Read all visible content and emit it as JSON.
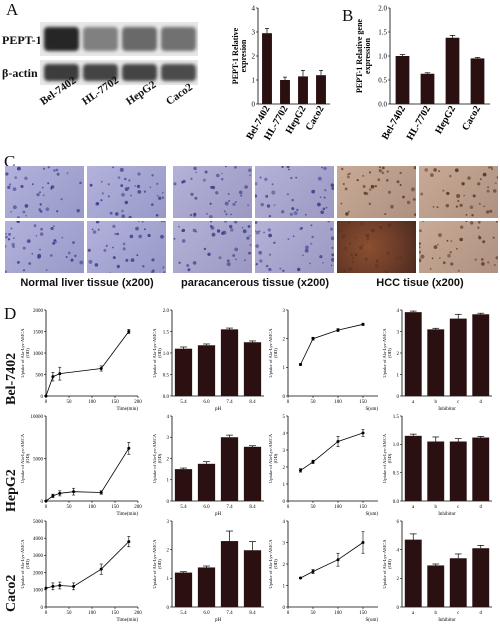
{
  "panels": {
    "A": "A",
    "B": "B",
    "C": "C",
    "D": "D"
  },
  "blot": {
    "rows": [
      "PEPT-1",
      "β-actin"
    ],
    "lanes": [
      "Bel-7402",
      "HL-7702",
      "HepG2",
      "Caco2"
    ],
    "pept1_intensity": [
      0.95,
      0.35,
      0.5,
      0.45
    ],
    "actin_intensity": [
      0.8,
      0.75,
      0.75,
      0.7
    ]
  },
  "tissues": {
    "labels": [
      "Normal liver tissue (x200)",
      "paracancerous tissue (x200)",
      "HCC tisue (x200)"
    ]
  },
  "rows": [
    "Bel-7402",
    "HepG2",
    "Caco2"
  ],
  "colors": {
    "bar": "#2a1010",
    "line": "#000000"
  },
  "chart_data": [
    {
      "id": "A-bar",
      "type": "bar",
      "categories": [
        "Bel-7402",
        "HL-7702",
        "HepG2",
        "Caco2"
      ],
      "values": [
        2.95,
        1.0,
        1.15,
        1.2
      ],
      "errors": [
        0.2,
        0.12,
        0.25,
        0.2
      ],
      "ylabel": "PEPT-1 Relative expresion",
      "ylim": [
        0,
        4
      ],
      "yticks": [
        0,
        1,
        2,
        3,
        4
      ]
    },
    {
      "id": "B-bar",
      "type": "bar",
      "categories": [
        "Bel-7402",
        "HL-7702",
        "HepG2",
        "Caco2"
      ],
      "values": [
        1.0,
        0.63,
        1.38,
        0.95
      ],
      "errors": [
        0.03,
        0.02,
        0.05,
        0.02
      ],
      "ylabel": "PEPT-1 Relative gene expression",
      "ylim": [
        0,
        2
      ],
      "yticks": [
        "0.0",
        "0.5",
        "1.0",
        "1.5",
        "2.0"
      ]
    },
    {
      "id": "D-r1-time",
      "type": "line",
      "x": [
        0,
        15,
        30,
        120,
        180
      ],
      "y": [
        0,
        450,
        520,
        640,
        1500
      ],
      "errors": [
        0,
        100,
        150,
        60,
        50
      ],
      "xlim": [
        0,
        200
      ],
      "ylim": [
        0,
        2000
      ],
      "xticks": [
        "0",
        "50",
        "100",
        "150",
        "200"
      ],
      "yticks": [
        "0",
        "500",
        "1000",
        "1500",
        "2000"
      ],
      "xlabel": "Time(min)",
      "ylabel": "Uptake of Ala-Lys-AMCA (OD)"
    },
    {
      "id": "D-r1-ph",
      "type": "bar",
      "categories": [
        "5.4",
        "6.0",
        "7.4",
        "8.4"
      ],
      "values": [
        1.1,
        1.18,
        1.55,
        1.25
      ],
      "errors": [
        0.04,
        0.03,
        0.03,
        0.03
      ],
      "ylim": [
        0,
        2
      ],
      "yticks": [
        "0.0",
        "0.5",
        "1.0",
        "1.5",
        "2.0"
      ],
      "xlabel": "pH",
      "ylabel": "Uptake of Ala-Lys-AMCA (OD)"
    },
    {
      "id": "D-r1-s",
      "type": "line",
      "x": [
        25,
        50,
        100,
        150
      ],
      "y": [
        1.1,
        2.0,
        2.3,
        2.5
      ],
      "errors": [
        0.03,
        0.05,
        0.05,
        0.04
      ],
      "xlim": [
        0,
        180
      ],
      "ylim": [
        0,
        3
      ],
      "xticks": [
        "0",
        "50",
        "100",
        "150"
      ],
      "yticks": [
        "0",
        "1",
        "2",
        "3"
      ],
      "xlabel": "S(um)",
      "ylabel": "Uptake of Ala-Lys-AMCA (OD)"
    },
    {
      "id": "D-r1-inh",
      "type": "bar",
      "categories": [
        "a",
        "b",
        "c",
        "d"
      ],
      "values": [
        3.9,
        3.1,
        3.6,
        3.8
      ],
      "errors": [
        0.05,
        0.05,
        0.2,
        0.05
      ],
      "ylim": [
        0,
        4
      ],
      "yticks": [
        "0",
        "1",
        "2",
        "3",
        "4"
      ],
      "xlabel": "Inhibitor",
      "ylabel": "Uptake of Ala-Lys-AMCA (OD)"
    },
    {
      "id": "D-r2-time",
      "type": "line",
      "x": [
        0,
        15,
        30,
        60,
        120,
        180
      ],
      "y": [
        0,
        600,
        900,
        1100,
        1000,
        6200
      ],
      "errors": [
        0,
        200,
        300,
        400,
        200,
        700
      ],
      "xlim": [
        0,
        200
      ],
      "ylim": [
        0,
        10000
      ],
      "xticks": [
        "0",
        "50",
        "100",
        "150",
        "200"
      ],
      "yticks": [
        "0",
        "5000",
        "10000"
      ],
      "xlabel": "Time(min)",
      "ylabel": "Uptake of Ala-Lys-AMCA (OD)"
    },
    {
      "id": "D-r2-ph",
      "type": "bar",
      "categories": [
        "5.4",
        "6.0",
        "7.4",
        "8.4"
      ],
      "values": [
        1.5,
        1.75,
        3.0,
        2.55
      ],
      "errors": [
        0.05,
        0.1,
        0.1,
        0.05
      ],
      "ylim": [
        0,
        4
      ],
      "yticks": [
        "0",
        "1",
        "2",
        "3",
        "4"
      ],
      "xlabel": "pH",
      "ylabel": "Uptake of Ala-Lys-AMCA (OD)"
    },
    {
      "id": "D-r2-s",
      "type": "line",
      "x": [
        25,
        50,
        100,
        150
      ],
      "y": [
        1.8,
        2.3,
        3.5,
        4.0
      ],
      "errors": [
        0.1,
        0.1,
        0.3,
        0.2
      ],
      "xlim": [
        0,
        180
      ],
      "ylim": [
        0,
        5
      ],
      "xticks": [
        "0",
        "50",
        "100",
        "150"
      ],
      "yticks": [
        "0",
        "1",
        "2",
        "3",
        "4",
        "5"
      ],
      "xlabel": "S(um)",
      "ylabel": "Uptake of Ala-Lys-AMCA (OD)"
    },
    {
      "id": "D-r2-inh",
      "type": "bar",
      "categories": [
        "a",
        "b",
        "c",
        "d"
      ],
      "values": [
        1.15,
        1.05,
        1.05,
        1.12
      ],
      "errors": [
        0.03,
        0.08,
        0.05,
        0.02
      ],
      "ylim": [
        0,
        1.5
      ],
      "yticks": [
        "0.0",
        "0.5",
        "1.0",
        "1.5"
      ],
      "xlabel": "Inhibitor",
      "ylabel": "Uptake of Ala-Lys-AMCA (OD)"
    },
    {
      "id": "D-r3-time",
      "type": "line",
      "x": [
        0,
        15,
        30,
        60,
        120,
        180
      ],
      "y": [
        1100,
        1200,
        1250,
        1200,
        2200,
        3800
      ],
      "errors": [
        0,
        200,
        200,
        200,
        300,
        300
      ],
      "xlim": [
        0,
        200
      ],
      "ylim": [
        0,
        5000
      ],
      "xticks": [
        "0",
        "50",
        "100",
        "150",
        "200"
      ],
      "yticks": [
        "0",
        "1000",
        "2000",
        "3000",
        "4000",
        "5000"
      ],
      "xlabel": "Time(min)",
      "ylabel": "Uptake of Ala-Lys-AMCA (OD)"
    },
    {
      "id": "D-r3-ph",
      "type": "bar",
      "categories": [
        "5.4",
        "6.0",
        "7.4",
        "8.4"
      ],
      "values": [
        1.2,
        1.38,
        2.3,
        1.98
      ],
      "errors": [
        0.03,
        0.05,
        0.35,
        0.3
      ],
      "ylim": [
        0,
        3
      ],
      "yticks": [
        "0",
        "1",
        "2",
        "3"
      ],
      "xlabel": "pH",
      "ylabel": "Uptake of Ala-Lys-AMCA (OD)"
    },
    {
      "id": "D-r3-s",
      "type": "line",
      "x": [
        25,
        50,
        100,
        150
      ],
      "y": [
        1.35,
        1.65,
        2.2,
        3.0
      ],
      "errors": [
        0.03,
        0.1,
        0.3,
        0.5
      ],
      "xlim": [
        0,
        180
      ],
      "ylim": [
        0,
        4
      ],
      "xticks": [
        "0",
        "50",
        "100",
        "150"
      ],
      "yticks": [
        "0",
        "1",
        "2",
        "3",
        "4"
      ],
      "xlabel": "S(um)",
      "ylabel": "Uptake of Ala-Lys-AMCA (OD)"
    },
    {
      "id": "D-r3-inh",
      "type": "bar",
      "categories": [
        "a",
        "b",
        "c",
        "d"
      ],
      "values": [
        4.7,
        2.9,
        3.4,
        4.1
      ],
      "errors": [
        0.4,
        0.1,
        0.3,
        0.2
      ],
      "ylim": [
        0,
        6
      ],
      "yticks": [
        "0",
        "2",
        "4",
        "6"
      ],
      "xlabel": "Inhibitor",
      "ylabel": "Uptake of Ala-Lys-AMCA (OD)"
    }
  ]
}
